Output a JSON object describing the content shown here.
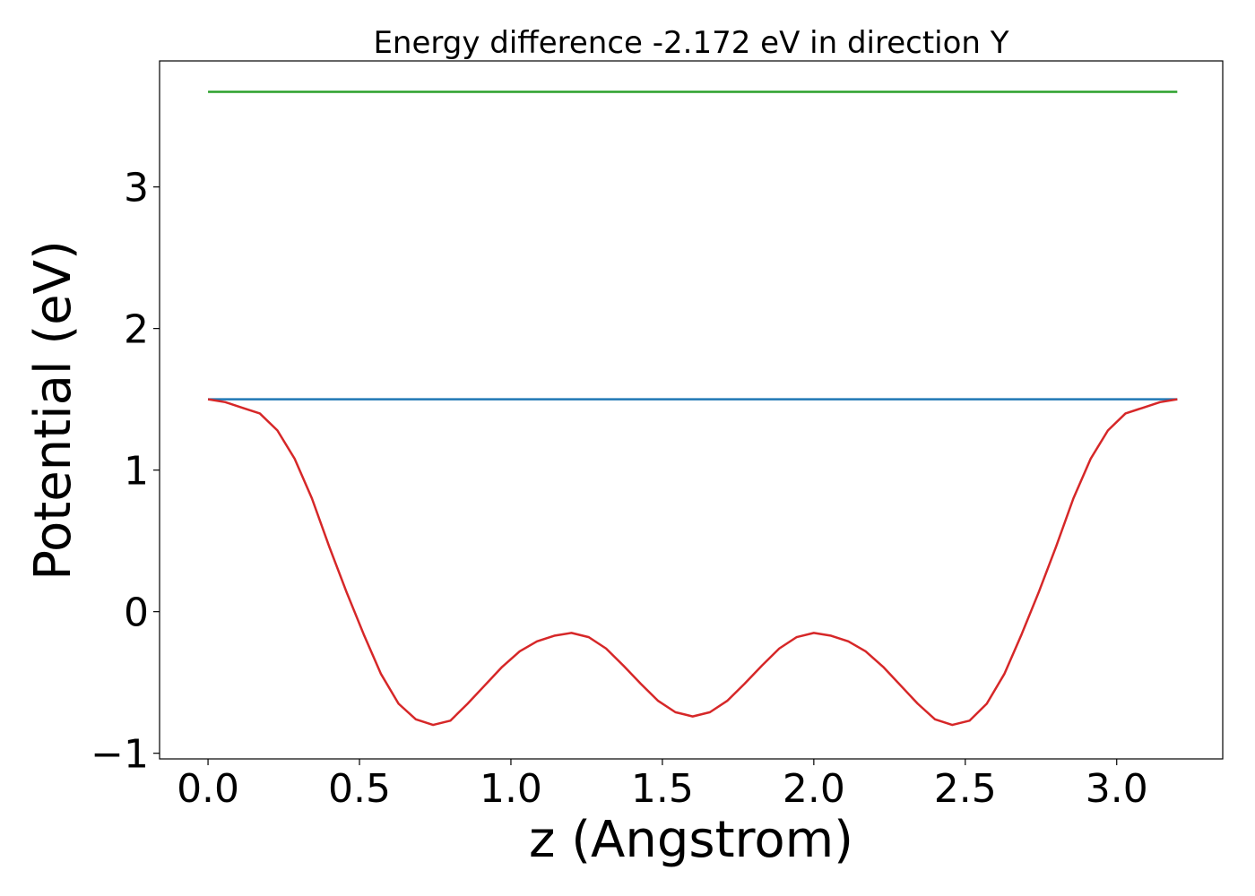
{
  "chart_data": {
    "type": "line",
    "title": "Energy difference -2.172 eV in direction Y",
    "xlabel": "z (Angstrom)",
    "ylabel": "Potential (eV)",
    "xlim": [
      -0.16,
      3.35
    ],
    "ylim": [
      -1.04,
      3.89
    ],
    "xticks": [
      0.0,
      0.5,
      1.0,
      1.5,
      2.0,
      2.5,
      3.0
    ],
    "xtick_labels": [
      "0.0",
      "0.5",
      "1.0",
      "1.5",
      "2.0",
      "2.5",
      "3.0"
    ],
    "yticks": [
      -1,
      0,
      1,
      2,
      3
    ],
    "ytick_labels": [
      "−1",
      "0",
      "1",
      "2",
      "3"
    ],
    "grid": false,
    "legend": "none",
    "series": [
      {
        "color": "#2ca02c",
        "x": [
          0.0,
          3.2
        ],
        "y": [
          3.672,
          3.672
        ]
      },
      {
        "color": "#1f77b4",
        "x": [
          0.0,
          3.2
        ],
        "y": [
          1.5,
          1.5
        ]
      },
      {
        "color": "#d62728",
        "x": [
          0.0,
          0.057,
          0.114,
          0.171,
          0.229,
          0.286,
          0.343,
          0.4,
          0.457,
          0.514,
          0.571,
          0.629,
          0.686,
          0.743,
          0.8,
          0.857,
          0.914,
          0.971,
          1.029,
          1.086,
          1.143,
          1.2,
          1.257,
          1.314,
          1.371,
          1.429,
          1.486,
          1.543,
          1.6,
          1.657,
          1.714,
          1.771,
          1.829,
          1.886,
          1.943,
          2.0,
          2.057,
          2.114,
          2.171,
          2.229,
          2.286,
          2.343,
          2.4,
          2.457,
          2.514,
          2.571,
          2.629,
          2.686,
          2.743,
          2.8,
          2.857,
          2.914,
          2.971,
          3.029,
          3.086,
          3.143,
          3.2
        ],
        "y": [
          1.5,
          1.48,
          1.44,
          1.4,
          1.28,
          1.08,
          0.8,
          0.46,
          0.14,
          -0.16,
          -0.44,
          -0.65,
          -0.76,
          -0.8,
          -0.77,
          -0.65,
          -0.52,
          -0.39,
          -0.28,
          -0.21,
          -0.17,
          -0.15,
          -0.18,
          -0.26,
          -0.38,
          -0.51,
          -0.63,
          -0.71,
          -0.74,
          -0.71,
          -0.63,
          -0.51,
          -0.38,
          -0.26,
          -0.18,
          -0.15,
          -0.17,
          -0.21,
          -0.28,
          -0.39,
          -0.52,
          -0.65,
          -0.76,
          -0.8,
          -0.77,
          -0.65,
          -0.44,
          -0.16,
          0.14,
          0.46,
          0.8,
          1.08,
          1.28,
          1.4,
          1.44,
          1.48,
          1.5
        ]
      }
    ]
  }
}
